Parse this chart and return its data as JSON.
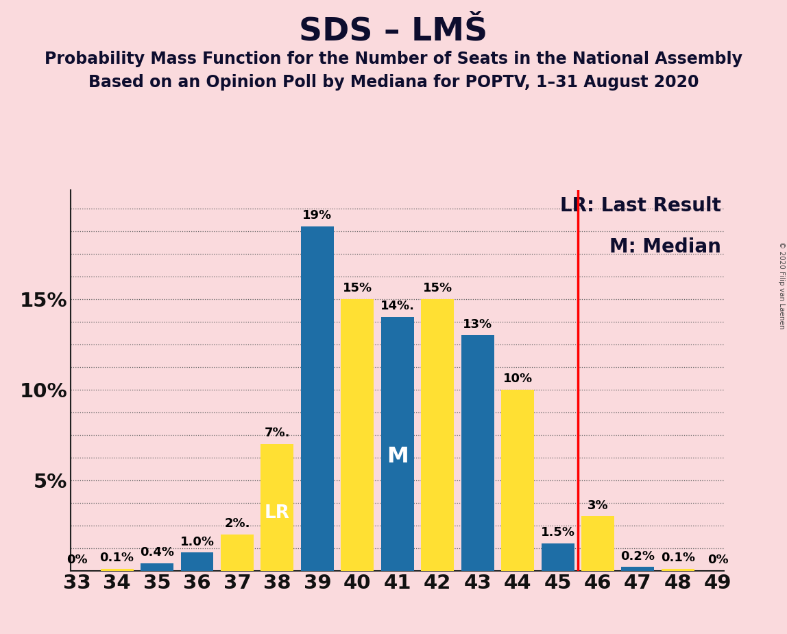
{
  "title": "SDS – LMŠ",
  "subtitle1": "Probability Mass Function for the Number of Seats in the National Assembly",
  "subtitle2": "Based on an Opinion Poll by Mediana for POPTV, 1–31 August 2020",
  "copyright": "© 2020 Filip van Laenen",
  "seats": [
    33,
    34,
    35,
    36,
    37,
    38,
    39,
    40,
    41,
    42,
    43,
    44,
    45,
    46,
    47,
    48,
    49
  ],
  "blue_values": [
    0.0,
    0.0,
    0.4,
    1.0,
    0.0,
    0.0,
    19.0,
    0.0,
    14.0,
    0.0,
    13.0,
    0.0,
    1.5,
    0.0,
    0.2,
    0.0,
    0.0
  ],
  "yellow_values": [
    0.0,
    0.1,
    0.0,
    0.0,
    2.0,
    7.0,
    0.0,
    15.0,
    0.0,
    15.0,
    0.0,
    10.0,
    0.0,
    3.0,
    0.0,
    0.1,
    0.0
  ],
  "blue_labels": [
    "",
    "",
    "0.4%",
    "1.0%",
    "",
    "",
    "19%",
    "",
    "14%.",
    "",
    "13%",
    "",
    "1.5%",
    "",
    "0.2%",
    "",
    ""
  ],
  "yellow_labels": [
    "0%",
    "0.1%",
    "",
    "",
    "2%.",
    "7%.",
    "",
    "15%",
    "",
    "15%",
    "",
    "10%",
    "",
    "3%",
    "",
    "0.1%",
    "0%"
  ],
  "blue_color": "#1E6EA6",
  "yellow_color": "#FFE033",
  "background_color": "#FADADD",
  "lr_line_after_index": 12,
  "yticks": [
    0,
    5,
    10,
    15,
    20
  ],
  "ytick_labels": [
    "",
    "5%",
    "10%",
    "15%",
    ""
  ],
  "ylim": [
    0,
    21
  ],
  "title_fontsize": 34,
  "subtitle_fontsize": 17,
  "label_fontsize": 13,
  "tick_fontsize": 21,
  "legend_fontsize": 20
}
